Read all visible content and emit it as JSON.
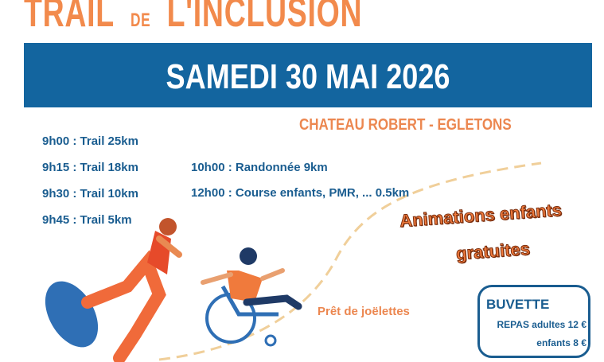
{
  "poster": {
    "title_part1": "TRAIL",
    "title_part2": "DE",
    "title_part3": "L'INCLUSION",
    "date": "SAMEDI 30 MAI 2026",
    "location": "CHATEAU ROBERT - EGLETONS",
    "schedule": [
      "9h00 : Trail 25km",
      "9h15 : Trail 18km",
      "9h30 : Trail 10km",
      "9h45 : Trail 5km",
      "10h00 : Randonnée 9km",
      "12h00 : Course enfants, PMR, ... 0.5km"
    ],
    "animations_line1": "Animations enfants",
    "animations_line2": "gratuites",
    "joelettes": "Prêt de joëlettes",
    "buvette": {
      "title": "BUVETTE",
      "line1": "REPAS adultes 12 €",
      "line2": "enfants 8 €"
    },
    "colors": {
      "orange": "#f28a4c",
      "blue": "#13659f",
      "text_blue": "#1a5d90"
    }
  }
}
